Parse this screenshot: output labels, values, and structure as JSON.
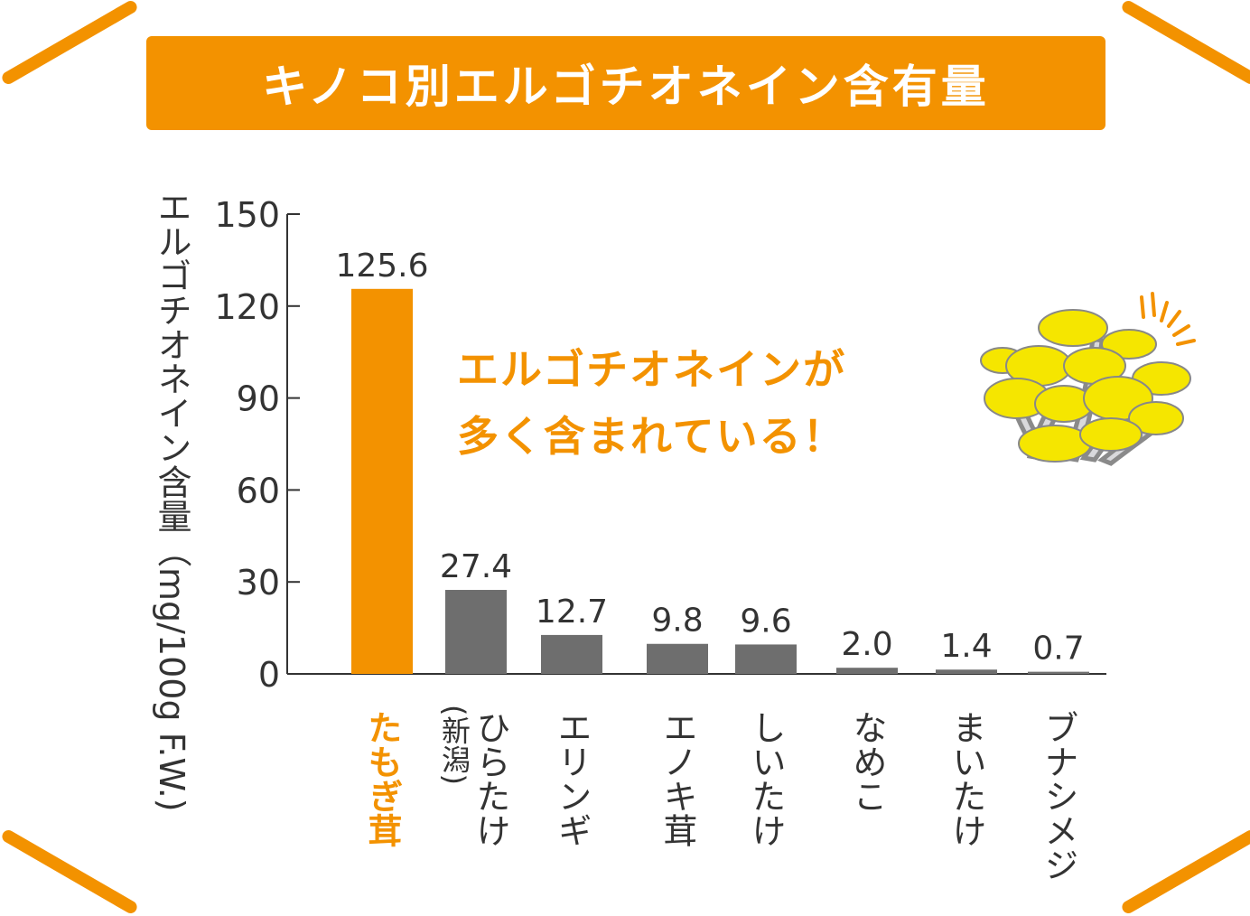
{
  "title": "キノコ別エルゴチオネイン含有量",
  "callout": {
    "line1": "エルゴチオネインが",
    "line2": "多く含まれている！"
  },
  "colors": {
    "accent": "#f39200",
    "bar_default": "#6e6e6e",
    "highlight_mushroom": "#f5e600"
  },
  "chart_data": {
    "type": "bar",
    "ylabel": "エルゴチオネイン含量（mg/100g F.W.)",
    "xlabel": "",
    "ylim": [
      0,
      150
    ],
    "yticks": [
      0,
      30,
      60,
      90,
      120,
      150
    ],
    "grid": false,
    "categories": [
      {
        "label": "たもぎ茸",
        "sublabel": "",
        "highlight": true
      },
      {
        "label": "ひらたけ",
        "sublabel": "(新潟)",
        "highlight": false
      },
      {
        "label": "エリンギ",
        "sublabel": "",
        "highlight": false
      },
      {
        "label": "エノキ茸",
        "sublabel": "",
        "highlight": false
      },
      {
        "label": "しいたけ",
        "sublabel": "",
        "highlight": false
      },
      {
        "label": "なめこ",
        "sublabel": "",
        "highlight": false
      },
      {
        "label": "まいたけ",
        "sublabel": "",
        "highlight": false
      },
      {
        "label": "ブナシメジ",
        "sublabel": "",
        "highlight": false
      }
    ],
    "values": [
      125.6,
      27.4,
      12.7,
      9.8,
      9.6,
      2.0,
      1.4,
      0.7
    ],
    "value_labels": [
      "125.6",
      "27.4",
      "12.7",
      "9.8",
      "9.6",
      "2.0",
      "1.4",
      "0.7"
    ]
  }
}
